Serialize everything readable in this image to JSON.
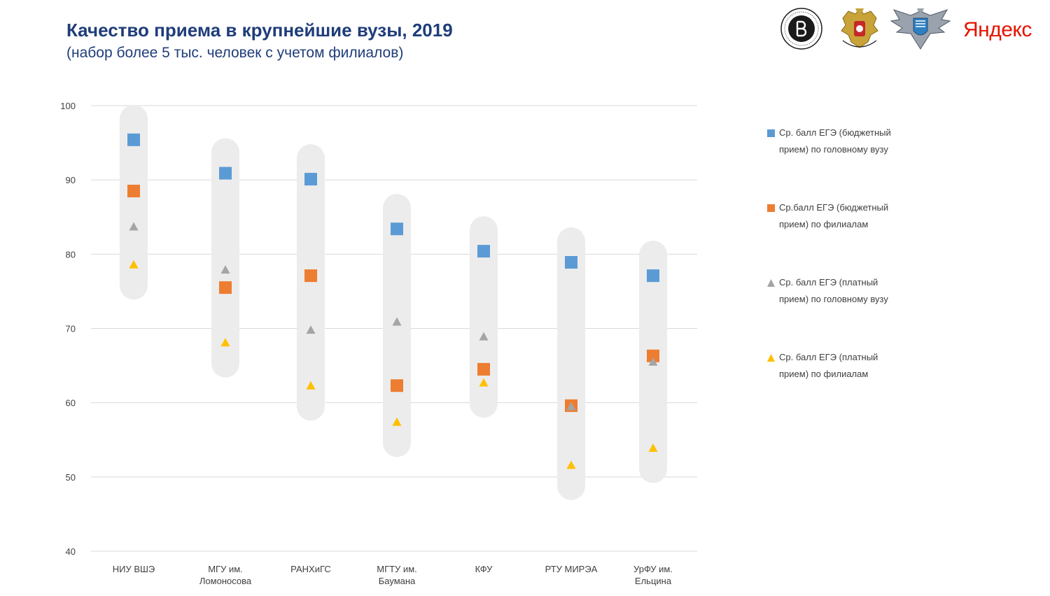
{
  "header": {
    "title": "Качество приема в крупнейшие вузы, 2019",
    "subtitle": "(набор более 5 тыс. человек с учетом филиалов)"
  },
  "logos": [
    {
      "name": "hse-logo-icon"
    },
    {
      "name": "russian-coat-of-arms-icon"
    },
    {
      "name": "rosobrnadzor-emblem-icon"
    },
    {
      "name": "yandex-logo",
      "text": "Яндекс"
    }
  ],
  "colors": {
    "title": "#1f3d7a",
    "budget_main": "#5b9bd5",
    "budget_branch": "#ed7d31",
    "paid_main": "#a5a5a5",
    "paid_branch": "#ffc000",
    "band": "#ececec",
    "grid": "#d9d9d9",
    "axis_text": "#404040",
    "yandex": "#e61400"
  },
  "chart_data": {
    "type": "scatter",
    "title": "Качество приема в крупнейшие вузы, 2019",
    "subtitle": "(набор более 5 тыс. человек с учетом филиалов)",
    "xlabel": "",
    "ylabel": "",
    "ylim": [
      40,
      100
    ],
    "yticks": [
      40,
      50,
      60,
      70,
      80,
      90,
      100
    ],
    "grid": true,
    "legend_position": "right",
    "categories": [
      [
        "НИУ ВШЭ"
      ],
      [
        "МГУ им.",
        "Ломоносова"
      ],
      [
        "РАНХиГС"
      ],
      [
        "МГТУ им.",
        "Баумана"
      ],
      [
        "КФУ"
      ],
      [
        "РТУ МИРЭА"
      ],
      [
        "УрФУ им.",
        "Ельцина"
      ]
    ],
    "series": [
      {
        "name": "Ср. балл ЕГЭ (бюджетный прием) по головному вузу",
        "legend_lines": [
          "Ср. балл ЕГЭ (бюджетный",
          "прием) по головному вузу"
        ],
        "marker": "square",
        "color": "#5b9bd5",
        "values": [
          95.4,
          90.9,
          90.1,
          83.4,
          80.4,
          78.9,
          77.1
        ]
      },
      {
        "name": "Ср.балл ЕГЭ (бюджетный прием) по филиалам",
        "legend_lines": [
          "Ср.балл ЕГЭ (бюджетный",
          "прием) по филиалам"
        ],
        "marker": "square",
        "color": "#ed7d31",
        "values": [
          88.5,
          75.5,
          77.1,
          62.3,
          64.5,
          59.6,
          66.3
        ]
      },
      {
        "name": "Ср. балл ЕГЭ (платный прием) по головному вузу",
        "legend_lines": [
          "Ср. балл ЕГЭ (платный",
          "прием) по головному вузу"
        ],
        "marker": "triangle",
        "color": "#a5a5a5",
        "values": [
          83.7,
          77.9,
          69.8,
          70.9,
          68.9,
          59.5,
          65.5
        ]
      },
      {
        "name": "Ср. балл ЕГЭ (платный прием) по филиалам",
        "legend_lines": [
          "Ср. балл ЕГЭ (платный",
          "прием) по филиалам"
        ],
        "marker": "triangle",
        "color": "#ffc000",
        "values": [
          78.6,
          68.1,
          62.3,
          57.4,
          62.7,
          51.6,
          53.9
        ]
      }
    ]
  }
}
